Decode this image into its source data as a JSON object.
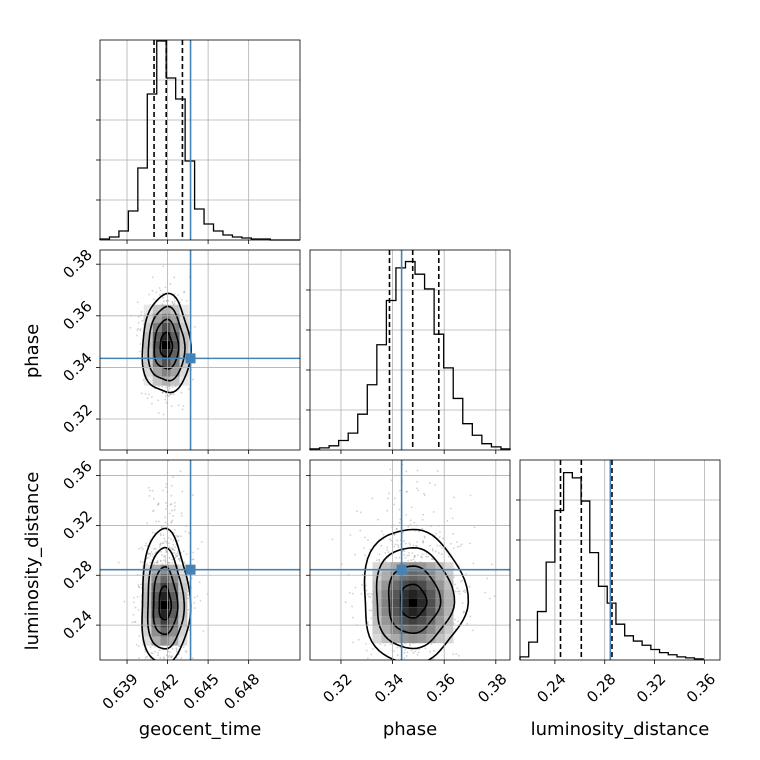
{
  "chart_data": {
    "type": "corner",
    "parameters": [
      "geocent_time",
      "phase",
      "luminosity_distance"
    ],
    "truths": [
      0.6437,
      0.3435,
      0.2845
    ],
    "truth_color": "#4682b4",
    "grid": true,
    "marginals": [
      {
        "parameter": "geocent_time",
        "range": [
          0.637,
          0.6518
        ],
        "ticks": [
          0.639,
          0.642,
          0.645,
          0.648
        ],
        "tick_labels": [
          "0.639",
          "0.642",
          "0.645",
          "0.648"
        ],
        "quantiles": [
          0.641,
          0.6419,
          0.6431
        ],
        "bins": [
          0.637,
          0.6377,
          0.6384,
          0.6391,
          0.6398,
          0.6405,
          0.6412,
          0.6419,
          0.6426,
          0.6433,
          0.644,
          0.6447,
          0.6454,
          0.6461,
          0.6468,
          0.6475,
          0.6482,
          0.6489,
          0.6496,
          0.6503,
          0.651,
          0.6518
        ],
        "counts": [
          1,
          3,
          9,
          29,
          72,
          146,
          199,
          162,
          141,
          79,
          31,
          16,
          9,
          5,
          3,
          2,
          1,
          1,
          0,
          0,
          0
        ],
        "ylim": [
          0,
          200
        ]
      },
      {
        "parameter": "phase",
        "range": [
          0.308,
          0.3855
        ],
        "ticks": [
          0.32,
          0.34,
          0.36,
          0.38
        ],
        "tick_labels": [
          "0.32",
          "0.34",
          "0.36",
          "0.38"
        ],
        "quantiles": [
          0.3388,
          0.3478,
          0.3579
        ],
        "bins": [
          0.308,
          0.3117,
          0.3154,
          0.3191,
          0.3228,
          0.3265,
          0.3302,
          0.3339,
          0.3376,
          0.3413,
          0.345,
          0.3487,
          0.3524,
          0.3561,
          0.3598,
          0.3635,
          0.3672,
          0.3709,
          0.3746,
          0.3783,
          0.382,
          0.3855
        ],
        "counts": [
          1,
          2,
          4,
          9,
          16,
          34,
          62,
          100,
          142,
          173,
          179,
          167,
          153,
          110,
          78,
          49,
          25,
          14,
          6,
          3,
          1
        ],
        "ylim": [
          0,
          190
        ]
      },
      {
        "parameter": "luminosity_distance",
        "range": [
          0.212,
          0.3725
        ],
        "ticks": [
          0.24,
          0.28,
          0.32,
          0.36
        ],
        "tick_labels": [
          "0.24",
          "0.28",
          "0.32",
          "0.36"
        ],
        "quantiles": [
          0.2445,
          0.2612,
          0.2858
        ],
        "bins": [
          0.212,
          0.219,
          0.226,
          0.233,
          0.24,
          0.247,
          0.254,
          0.261,
          0.268,
          0.275,
          0.282,
          0.289,
          0.296,
          0.303,
          0.31,
          0.317,
          0.324,
          0.331,
          0.338,
          0.345,
          0.352,
          0.359
        ],
        "counts": [
          3,
          17,
          46,
          93,
          142,
          178,
          173,
          151,
          102,
          70,
          54,
          34,
          23,
          18,
          14,
          10,
          7,
          5,
          3,
          2,
          1
        ],
        "ylim": [
          0,
          190
        ]
      }
    ],
    "joint": [
      {
        "x": "geocent_time",
        "y": "phase",
        "peak": [
          0.6419,
          0.3486
        ],
        "sigma": [
          0.00085,
          0.0095
        ]
      },
      {
        "x": "geocent_time",
        "y": "luminosity_distance",
        "peak": [
          0.6418,
          0.256
        ],
        "sigma": [
          0.00085,
          0.024
        ]
      },
      {
        "x": "phase",
        "y": "luminosity_distance",
        "peak": [
          0.3479,
          0.258
        ],
        "sigma": [
          0.0095,
          0.024
        ]
      }
    ]
  }
}
